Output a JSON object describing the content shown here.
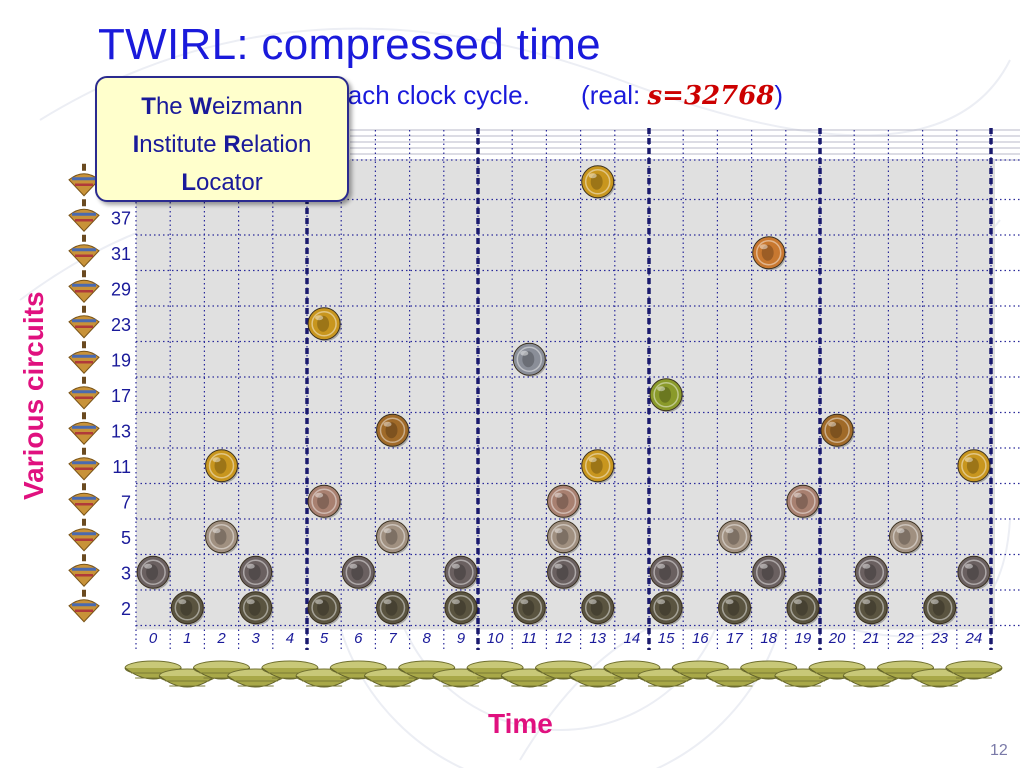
{
  "slide": {
    "title": "TWIRL: compressed time",
    "subtitle_text": "dled at each clock cycle.",
    "real_label": "(real: ",
    "real_value": "s=32768",
    "real_close": ")",
    "page_number": "12"
  },
  "callout": {
    "line1_initial": "T",
    "line1_rest": "he ",
    "line1_initial2": "W",
    "line1_rest2": "eizmann",
    "line2_initial": "I",
    "line2_rest": "nstitute ",
    "line2_initial2": "R",
    "line2_rest2": "elation",
    "line3_initial": "L",
    "line3_rest": "ocator"
  },
  "axes": {
    "y_label": "Various circuits",
    "x_label": "Time"
  },
  "diagram": {
    "time_ticks": [
      "0",
      "1",
      "2",
      "3",
      "4",
      "5",
      "6",
      "7",
      "8",
      "9",
      "10",
      "11",
      "12",
      "13",
      "14",
      "15",
      "16",
      "17",
      "18",
      "19",
      "20",
      "21",
      "22",
      "23",
      "24"
    ],
    "circuit_rows": [
      "",
      "37",
      "31",
      "29",
      "23",
      "19",
      "17",
      "13",
      "11",
      "7",
      "5",
      "3",
      "2"
    ],
    "coin_colors": {
      "gold": "#c8961e",
      "copper": "#c87830",
      "bronze": "#a06a28",
      "green": "#8a9a2a",
      "silver": "#8a8e98",
      "pinkish": "#a88070",
      "grey": "#a09080",
      "dark": "#5a5440",
      "darkgrey": "#6a6060"
    },
    "coins": [
      {
        "row": 0,
        "time": 13,
        "kind": "gold"
      },
      {
        "row": 2,
        "time": 18,
        "kind": "copper"
      },
      {
        "row": 4,
        "time": 5,
        "kind": "gold"
      },
      {
        "row": 5,
        "time": 11,
        "kind": "silver"
      },
      {
        "row": 6,
        "time": 15,
        "kind": "green"
      },
      {
        "row": 7,
        "time": 7,
        "kind": "bronze"
      },
      {
        "row": 7,
        "time": 20,
        "kind": "bronze"
      },
      {
        "row": 8,
        "time": 2,
        "kind": "gold"
      },
      {
        "row": 8,
        "time": 13,
        "kind": "gold"
      },
      {
        "row": 8,
        "time": 24,
        "kind": "gold"
      },
      {
        "row": 9,
        "time": 5,
        "kind": "pinkish"
      },
      {
        "row": 9,
        "time": 12,
        "kind": "pinkish"
      },
      {
        "row": 9,
        "time": 19,
        "kind": "pinkish"
      },
      {
        "row": 10,
        "time": 2,
        "kind": "grey"
      },
      {
        "row": 10,
        "time": 7,
        "kind": "grey"
      },
      {
        "row": 10,
        "time": 12,
        "kind": "grey"
      },
      {
        "row": 10,
        "time": 17,
        "kind": "grey"
      },
      {
        "row": 10,
        "time": 22,
        "kind": "grey"
      },
      {
        "row": 11,
        "time": 0,
        "kind": "darkgrey"
      },
      {
        "row": 11,
        "time": 3,
        "kind": "darkgrey"
      },
      {
        "row": 11,
        "time": 6,
        "kind": "darkgrey"
      },
      {
        "row": 11,
        "time": 9,
        "kind": "darkgrey"
      },
      {
        "row": 11,
        "time": 12,
        "kind": "darkgrey"
      },
      {
        "row": 11,
        "time": 15,
        "kind": "darkgrey"
      },
      {
        "row": 11,
        "time": 18,
        "kind": "darkgrey"
      },
      {
        "row": 11,
        "time": 21,
        "kind": "darkgrey"
      },
      {
        "row": 11,
        "time": 24,
        "kind": "darkgrey"
      },
      {
        "row": 12,
        "time": 1,
        "kind": "dark"
      },
      {
        "row": 12,
        "time": 3,
        "kind": "dark"
      },
      {
        "row": 12,
        "time": 5,
        "kind": "dark"
      },
      {
        "row": 12,
        "time": 7,
        "kind": "dark"
      },
      {
        "row": 12,
        "time": 9,
        "kind": "dark"
      },
      {
        "row": 12,
        "time": 11,
        "kind": "dark"
      },
      {
        "row": 12,
        "time": 13,
        "kind": "dark"
      },
      {
        "row": 12,
        "time": 15,
        "kind": "dark"
      },
      {
        "row": 12,
        "time": 17,
        "kind": "dark"
      },
      {
        "row": 12,
        "time": 19,
        "kind": "dark"
      },
      {
        "row": 12,
        "time": 21,
        "kind": "dark"
      },
      {
        "row": 12,
        "time": 23,
        "kind": "dark"
      }
    ],
    "bold_dividers_after_time": [
      4,
      9,
      14,
      19,
      24
    ],
    "colors": {
      "title": "#1a1adb",
      "accent_pink": "#e0117f",
      "grid_bg": "#e0e0e0",
      "grid_dots": "#2a2a9a",
      "divider": "#1a1a6e",
      "tick_text": "#1a1a9a",
      "basket": "#a8a848"
    }
  }
}
